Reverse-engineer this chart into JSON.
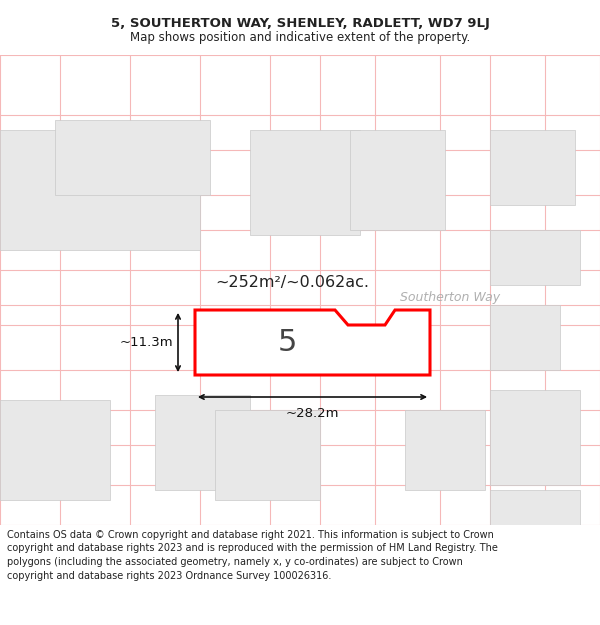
{
  "title_line1": "5, SOUTHERTON WAY, SHENLEY, RADLETT, WD7 9LJ",
  "title_line2": "Map shows position and indicative extent of the property.",
  "footer_text": "Contains OS data © Crown copyright and database right 2021. This information is subject to Crown copyright and database rights 2023 and is reproduced with the permission of HM Land Registry. The polygons (including the associated geometry, namely x, y co-ordinates) are subject to Crown copyright and database rights 2023 Ordnance Survey 100026316.",
  "bg_color": "#ffffff",
  "map_bg": "#ffffff",
  "boundary_color": "#ff0000",
  "boundary_light": "#f5b8b8",
  "road_label": "Southerton Way",
  "property_label": "5",
  "area_label": "~252m²/~0.062ac.",
  "dim_width": "~28.2m",
  "dim_height": "~11.3m",
  "title_fontsize": 9.5,
  "subtitle_fontsize": 8.5,
  "footer_fontsize": 7.0,
  "building_fill": "#e8e8e8",
  "building_edge": "#c8c8c8",
  "inner_building_fill": "#d8d8d8",
  "inner_building_edge": "#bbbbbb",
  "road_label_color": "#b0b0b0",
  "dim_color": "#111111",
  "label_color": "#222222",
  "prop_num_color": "#444444"
}
